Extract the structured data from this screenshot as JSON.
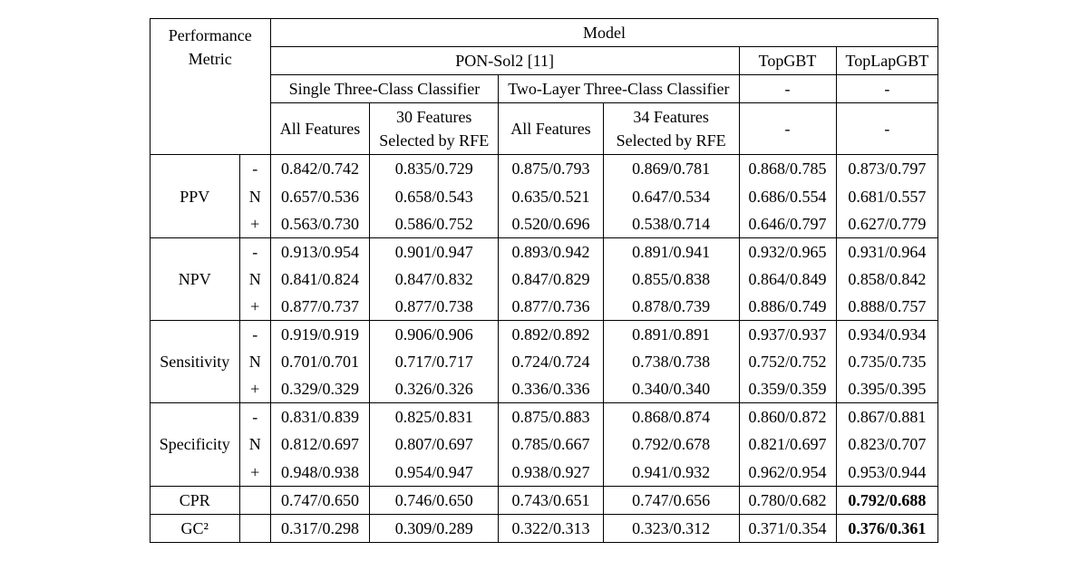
{
  "font_family": "Times New Roman",
  "font_size_pt": 18,
  "background_color": "#ffffff",
  "border_color": "#000000",
  "text_color": "#000000",
  "header": {
    "model": "Model",
    "performance_metric_l1": "Performance",
    "performance_metric_l2": "Metric",
    "pon_sol2": "PON-Sol2 [11]",
    "topgbt": "TopGBT",
    "toplapgbt": "TopLapGBT",
    "single_three_class": "Single Three-Class Classifier",
    "two_layer_three_class": "Two-Layer Three-Class Classifier",
    "all_features_a": "All Features",
    "all_features_b": "All Features",
    "rfe30_l1": "30 Features",
    "rfe30_l2": "Selected by RFE",
    "rfe34_l1": "34 Features",
    "rfe34_l2": "Selected by RFE",
    "dash": "-"
  },
  "metrics": {
    "ppv": "PPV",
    "npv": "NPV",
    "sensitivity": "Sensitivity",
    "specificity": "Specificity",
    "cpr": "CPR",
    "gc2": "GC²"
  },
  "sub": {
    "minus": "-",
    "n": "N",
    "plus": "+"
  },
  "rows": {
    "ppv_minus": [
      "0.842/0.742",
      "0.835/0.729",
      "0.875/0.793",
      "0.869/0.781",
      "0.868/0.785",
      "0.873/0.797"
    ],
    "ppv_n": [
      "0.657/0.536",
      "0.658/0.543",
      "0.635/0.521",
      "0.647/0.534",
      "0.686/0.554",
      "0.681/0.557"
    ],
    "ppv_plus": [
      "0.563/0.730",
      "0.586/0.752",
      "0.520/0.696",
      "0.538/0.714",
      "0.646/0.797",
      "0.627/0.779"
    ],
    "npv_minus": [
      "0.913/0.954",
      "0.901/0.947",
      "0.893/0.942",
      "0.891/0.941",
      "0.932/0.965",
      "0.931/0.964"
    ],
    "npv_n": [
      "0.841/0.824",
      "0.847/0.832",
      "0.847/0.829",
      "0.855/0.838",
      "0.864/0.849",
      "0.858/0.842"
    ],
    "npv_plus": [
      "0.877/0.737",
      "0.877/0.738",
      "0.877/0.736",
      "0.878/0.739",
      "0.886/0.749",
      "0.888/0.757"
    ],
    "sens_minus": [
      "0.919/0.919",
      "0.906/0.906",
      "0.892/0.892",
      "0.891/0.891",
      "0.937/0.937",
      "0.934/0.934"
    ],
    "sens_n": [
      "0.701/0.701",
      "0.717/0.717",
      "0.724/0.724",
      "0.738/0.738",
      "0.752/0.752",
      "0.735/0.735"
    ],
    "sens_plus": [
      "0.329/0.329",
      "0.326/0.326",
      "0.336/0.336",
      "0.340/0.340",
      "0.359/0.359",
      "0.395/0.395"
    ],
    "spec_minus": [
      "0.831/0.839",
      "0.825/0.831",
      "0.875/0.883",
      "0.868/0.874",
      "0.860/0.872",
      "0.867/0.881"
    ],
    "spec_n": [
      "0.812/0.697",
      "0.807/0.697",
      "0.785/0.667",
      "0.792/0.678",
      "0.821/0.697",
      "0.823/0.707"
    ],
    "spec_plus": [
      "0.948/0.938",
      "0.954/0.947",
      "0.938/0.927",
      "0.941/0.932",
      "0.962/0.954",
      "0.953/0.944"
    ],
    "cpr": [
      "0.747/0.650",
      "0.746/0.650",
      "0.743/0.651",
      "0.747/0.656",
      "0.780/0.682",
      "0.792/0.688"
    ],
    "gc2": [
      "0.317/0.298",
      "0.309/0.289",
      "0.322/0.313",
      "0.323/0.312",
      "0.371/0.354",
      "0.376/0.361"
    ]
  },
  "bold_cells": {
    "cpr": [
      false,
      false,
      false,
      false,
      false,
      true
    ],
    "gc2": [
      false,
      false,
      false,
      false,
      false,
      true
    ]
  }
}
